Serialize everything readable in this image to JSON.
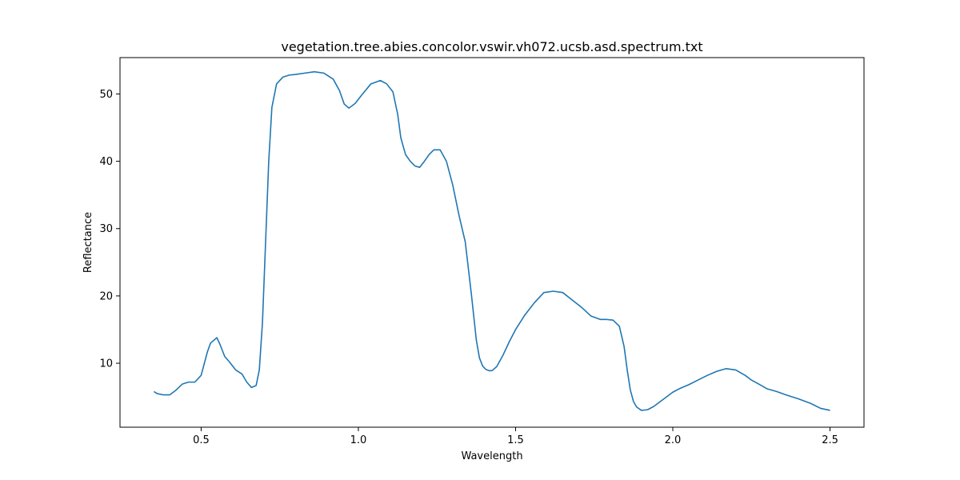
{
  "chart_data": {
    "type": "line",
    "title": "vegetation.tree.abies.concolor.vswir.vh072.ucsb.asd.spectrum.txt",
    "xlabel": "Wavelength",
    "ylabel": "Reflectance",
    "xlim": [
      0.242,
      2.608
    ],
    "ylim": [
      0.5,
      55.4
    ],
    "xticks": [
      0.5,
      1.0,
      1.5,
      2.0,
      2.5
    ],
    "xtick_labels": [
      "0.5",
      "1.0",
      "1.5",
      "2.0",
      "2.5"
    ],
    "yticks": [
      10,
      20,
      30,
      40,
      50
    ],
    "ytick_labels": [
      "10",
      "20",
      "30",
      "40",
      "50"
    ],
    "grid": false,
    "colors": {
      "series": "#1f77b4"
    },
    "series": [
      {
        "x": [
          0.35,
          0.36,
          0.38,
          0.4,
          0.42,
          0.44,
          0.46,
          0.48,
          0.5,
          0.52,
          0.53,
          0.55,
          0.56,
          0.575,
          0.59,
          0.61,
          0.63,
          0.645,
          0.66,
          0.675,
          0.685,
          0.695,
          0.705,
          0.715,
          0.725,
          0.74,
          0.76,
          0.78,
          0.8,
          0.83,
          0.86,
          0.89,
          0.92,
          0.94,
          0.955,
          0.97,
          0.99,
          1.01,
          1.04,
          1.07,
          1.09,
          1.11,
          1.125,
          1.135,
          1.15,
          1.165,
          1.18,
          1.195,
          1.21,
          1.225,
          1.24,
          1.26,
          1.28,
          1.3,
          1.32,
          1.34,
          1.36,
          1.375,
          1.385,
          1.395,
          1.405,
          1.415,
          1.425,
          1.44,
          1.46,
          1.48,
          1.5,
          1.53,
          1.56,
          1.59,
          1.62,
          1.65,
          1.68,
          1.71,
          1.74,
          1.77,
          1.79,
          1.81,
          1.83,
          1.845,
          1.855,
          1.865,
          1.875,
          1.885,
          1.9,
          1.92,
          1.94,
          1.96,
          1.98,
          2.0,
          2.02,
          2.05,
          2.08,
          2.11,
          2.14,
          2.17,
          2.2,
          2.23,
          2.25,
          2.27,
          2.3,
          2.33,
          2.36,
          2.4,
          2.44,
          2.47,
          2.5
        ],
        "y": [
          5.8,
          5.5,
          5.3,
          5.3,
          6.0,
          6.9,
          7.2,
          7.2,
          8.2,
          11.7,
          13.0,
          13.8,
          12.8,
          11.0,
          10.2,
          9.0,
          8.4,
          7.2,
          6.4,
          6.7,
          9.0,
          16.0,
          28.0,
          40.0,
          48.0,
          51.5,
          52.5,
          52.8,
          52.9,
          53.1,
          53.3,
          53.1,
          52.2,
          50.5,
          48.5,
          47.9,
          48.6,
          49.8,
          51.5,
          52.0,
          51.5,
          50.3,
          47.0,
          43.5,
          41.0,
          40.0,
          39.3,
          39.1,
          40.0,
          41.0,
          41.7,
          41.7,
          40.0,
          36.5,
          32.0,
          28.0,
          20.0,
          13.5,
          10.8,
          9.6,
          9.1,
          8.9,
          8.9,
          9.5,
          11.2,
          13.2,
          15.0,
          17.2,
          19.0,
          20.5,
          20.7,
          20.5,
          19.4,
          18.3,
          17.0,
          16.5,
          16.5,
          16.4,
          15.5,
          12.5,
          9.0,
          6.0,
          4.3,
          3.5,
          3.0,
          3.1,
          3.6,
          4.3,
          5.0,
          5.7,
          6.2,
          6.8,
          7.5,
          8.2,
          8.8,
          9.2,
          9.0,
          8.2,
          7.5,
          7.0,
          6.2,
          5.8,
          5.3,
          4.7,
          4.0,
          3.3,
          3.0
        ]
      }
    ]
  }
}
